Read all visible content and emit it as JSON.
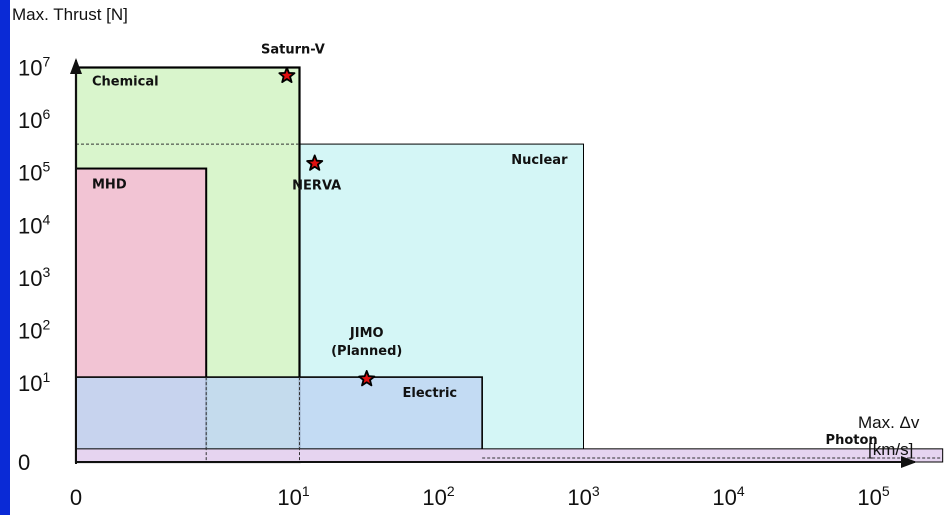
{
  "chart_data": {
    "type": "area",
    "title": "",
    "xlabel": "Max. Δv",
    "xunit": "[km/s]",
    "ylabel": "Max. Thrust [N]",
    "x_ticks": [
      "0",
      "10",
      "10",
      "10",
      "10",
      "10"
    ],
    "x_tick_exponents": [
      "",
      "1",
      "2",
      "3",
      "4",
      "5"
    ],
    "y_ticks": [
      "0",
      "10",
      "10",
      "10",
      "10",
      "10",
      "10",
      "10"
    ],
    "y_tick_exponents": [
      "",
      "1",
      "2",
      "3",
      "4",
      "5",
      "6",
      "7"
    ],
    "series": [
      {
        "name": "Chemical",
        "max_delta_v_km_s": 11,
        "max_thrust_N": 10000000,
        "color": "#d9f5cc"
      },
      {
        "name": "MHD",
        "max_delta_v_km_s": 2.5,
        "max_thrust_N": 120000,
        "color": "#f2c4d4"
      },
      {
        "name": "Nuclear",
        "max_delta_v_km_s": 1000,
        "max_thrust_N": 350000,
        "color": "#d4f6f6"
      },
      {
        "name": "Electric",
        "max_delta_v_km_s": 200,
        "max_thrust_N": 13,
        "color": "#c0d6f2"
      },
      {
        "name": "Photon",
        "max_delta_v_km_s": 300000,
        "max_thrust_N": 0.5,
        "color": "#e6d4f0"
      }
    ],
    "missions": [
      {
        "name": "Saturn-V",
        "delta_v_km_s": 9,
        "thrust_N": 7000000
      },
      {
        "name": "NERVA",
        "delta_v_km_s": 14,
        "thrust_N": 150000
      },
      {
        "name": "JIMO",
        "note": "(Planned)",
        "delta_v_km_s": 32,
        "thrust_N": 12
      }
    ],
    "colors": {
      "background": "#0a2ad6",
      "star_fill": "#e01010",
      "outline": "#000000"
    }
  }
}
